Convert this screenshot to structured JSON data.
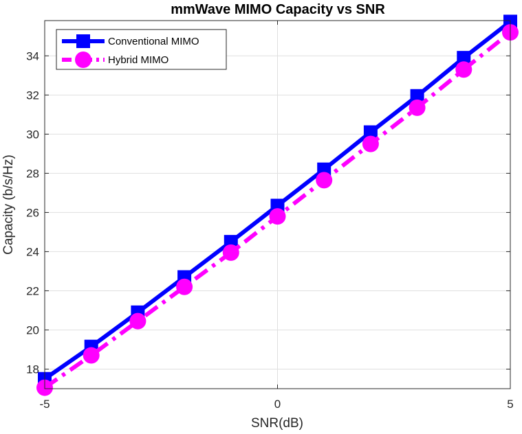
{
  "chart_data": {
    "type": "line",
    "title": "mmWave MIMO Capacity vs SNR",
    "xlabel": "SNR(dB)",
    "ylabel": "Capacity (b/s/Hz)",
    "xlim": [
      -5,
      5
    ],
    "ylim": [
      17,
      35.8
    ],
    "x_ticks": [
      -5,
      0,
      5
    ],
    "y_ticks": [
      18,
      20,
      22,
      24,
      26,
      28,
      30,
      32,
      34
    ],
    "x_tick_labels": [
      "-5",
      "0",
      "5"
    ],
    "y_tick_labels": [
      "18",
      "20",
      "22",
      "24",
      "26",
      "28",
      "30",
      "32",
      "34"
    ],
    "grid": true,
    "legend_position": "top-left",
    "x": [
      -5,
      -4,
      -3,
      -2,
      -1,
      0,
      1,
      2,
      3,
      4,
      5
    ],
    "series": [
      {
        "name": "Conventional MIMO",
        "color": "#0000ff",
        "line_style": "solid",
        "marker": "square",
        "values": [
          17.5,
          19.15,
          20.9,
          22.7,
          24.5,
          26.35,
          28.2,
          30.1,
          31.95,
          33.9,
          35.75
        ]
      },
      {
        "name": "Hybrid MIMO",
        "color": "#ff00ff",
        "line_style": "dash-dot",
        "marker": "circle",
        "values": [
          17.05,
          18.7,
          20.45,
          22.2,
          23.95,
          25.8,
          27.65,
          29.5,
          31.35,
          33.3,
          35.2
        ]
      }
    ]
  }
}
